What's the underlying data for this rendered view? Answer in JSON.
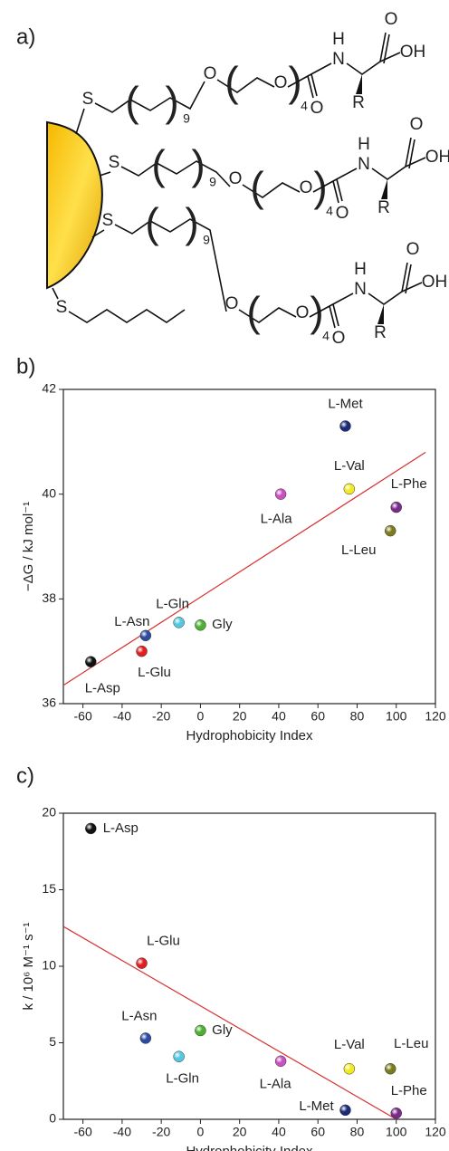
{
  "scheme": {
    "label": "a)",
    "chains": [
      {
        "S": "S",
        "n": "9",
        "O1": "O",
        "O2": "O",
        "m": "4",
        "O3": "O",
        "H": "H",
        "N": "N",
        "O4": "O",
        "OH": "OH",
        "R": "R"
      },
      {
        "S": "S",
        "n": "9",
        "O1": "O",
        "O2": "O",
        "m": "4",
        "O3": "O",
        "H": "H",
        "N": "N",
        "O4": "O",
        "OH": "OH",
        "R": "R"
      },
      {
        "S": "S",
        "n": "9",
        "O1": "O",
        "O2": "O",
        "m": "4",
        "O3": "O",
        "H": "H",
        "N": "N",
        "O4": "O",
        "OH": "OH",
        "R": "R"
      }
    ],
    "thiol": "S"
  },
  "chart_data": [
    {
      "type": "scatter",
      "label": "b)",
      "x_label": "Hydrophobicity Index",
      "y_label": "−ΔG / kJ mol⁻¹",
      "xlim": [
        -70,
        120
      ],
      "xticks": [
        -60,
        -40,
        -20,
        0,
        20,
        40,
        60,
        80,
        100,
        120
      ],
      "ylim": [
        36,
        42
      ],
      "yticks": [
        36,
        38,
        40,
        42
      ],
      "series": [
        {
          "name": "L-Asp",
          "color": "#111111",
          "x": [
            -56
          ],
          "values": [
            36.8
          ]
        },
        {
          "name": "L-Glu",
          "color": "#e02020",
          "x": [
            -30
          ],
          "values": [
            37.0
          ]
        },
        {
          "name": "L-Asn",
          "color": "#2c4aa0",
          "x": [
            -28
          ],
          "values": [
            37.3
          ]
        },
        {
          "name": "L-Gln",
          "color": "#55c8e0",
          "x": [
            -11
          ],
          "values": [
            37.55
          ]
        },
        {
          "name": "Gly",
          "color": "#4cb030",
          "x": [
            0
          ],
          "values": [
            37.5
          ]
        },
        {
          "name": "L-Ala",
          "color": "#c850c0",
          "x": [
            41
          ],
          "values": [
            40.0
          ]
        },
        {
          "name": "L-Met",
          "color": "#1c2a78",
          "x": [
            74
          ],
          "values": [
            41.3
          ]
        },
        {
          "name": "L-Val",
          "color": "#f2ea20",
          "x": [
            76
          ],
          "values": [
            40.1
          ]
        },
        {
          "name": "L-Leu",
          "color": "#7a7a1e",
          "x": [
            97
          ],
          "values": [
            39.3
          ]
        },
        {
          "name": "L-Phe",
          "color": "#7a2a8a",
          "x": [
            100
          ],
          "values": [
            39.75
          ]
        }
      ],
      "fit": {
        "color": "#d83030",
        "x": [
          -70,
          115
        ],
        "values": [
          36.35,
          40.8
        ]
      }
    },
    {
      "type": "scatter",
      "label": "c)",
      "x_label": "Hydrophobicity Index",
      "y_label": "k / 10⁶ M⁻¹ s⁻¹",
      "xlim": [
        -70,
        120
      ],
      "xticks": [
        -60,
        -40,
        -20,
        0,
        20,
        40,
        60,
        80,
        100,
        120
      ],
      "ylim": [
        0,
        20
      ],
      "yticks": [
        0,
        5,
        10,
        15,
        20
      ],
      "series": [
        {
          "name": "L-Asp",
          "color": "#111111",
          "x": [
            -56
          ],
          "values": [
            19
          ]
        },
        {
          "name": "L-Glu",
          "color": "#e02020",
          "x": [
            -30
          ],
          "values": [
            10.2
          ]
        },
        {
          "name": "L-Asn",
          "color": "#2c4aa0",
          "x": [
            -28
          ],
          "values": [
            5.3
          ]
        },
        {
          "name": "L-Gln",
          "color": "#55c8e0",
          "x": [
            -11
          ],
          "values": [
            4.1
          ]
        },
        {
          "name": "Gly",
          "color": "#4cb030",
          "x": [
            0
          ],
          "values": [
            5.8
          ]
        },
        {
          "name": "L-Ala",
          "color": "#c850c0",
          "x": [
            41
          ],
          "values": [
            3.8
          ]
        },
        {
          "name": "L-Met",
          "color": "#1c2a78",
          "x": [
            74
          ],
          "values": [
            0.6
          ]
        },
        {
          "name": "L-Val",
          "color": "#f2ea20",
          "x": [
            76
          ],
          "values": [
            3.3
          ]
        },
        {
          "name": "L-Leu",
          "color": "#7a7a1e",
          "x": [
            97
          ],
          "values": [
            3.3
          ]
        },
        {
          "name": "L-Phe",
          "color": "#7a2a8a",
          "x": [
            100
          ],
          "values": [
            0.4
          ]
        }
      ],
      "fit": {
        "color": "#d83030",
        "x": [
          -70,
          100
        ],
        "values": [
          12.6,
          0
        ]
      }
    }
  ]
}
